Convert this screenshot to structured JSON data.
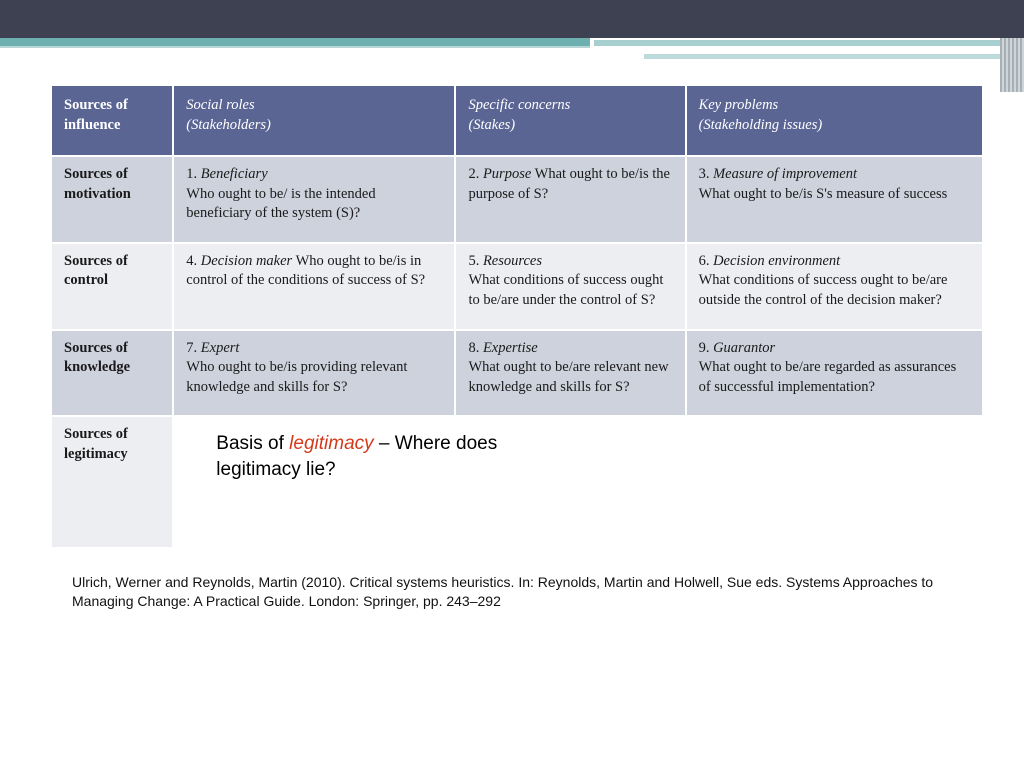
{
  "colors": {
    "top_bar": "#3e4151",
    "teal": "#6eafaf",
    "table_header_bg": "#5a6594",
    "table_header_fg": "#ffffff",
    "row_shade_a": "#ced2dd",
    "row_shade_b": "#edeef2",
    "callout_accent": "#d43a1a"
  },
  "typography": {
    "table_font": "Georgia, serif",
    "table_fontsize_pt": 11,
    "callout_font": "Arial, sans-serif",
    "callout_fontsize_pt": 14,
    "citation_fontsize_pt": 10
  },
  "table": {
    "type": "table",
    "header": {
      "corner": "Sources of influence",
      "cols": [
        {
          "line1": "Social roles",
          "line2": "(Stakeholders)"
        },
        {
          "line1": "Specific concerns",
          "line2": "(Stakes)"
        },
        {
          "line1": "Key problems",
          "line2": "(Stakeholding issues)"
        }
      ]
    },
    "rows": [
      {
        "label": "Sources of motivation",
        "cells": [
          {
            "num": "1.",
            "term": "Beneficiary",
            "text": "Who ought to be/ is the intended beneficiary of the system (S)?"
          },
          {
            "num": "2.",
            "term": "Purpose",
            "text": "What ought to be/is the purpose of S?"
          },
          {
            "num": "3.",
            "term": "Measure of improvement",
            "text": "What ought to be/is S's measure of success"
          }
        ]
      },
      {
        "label": "Sources of control",
        "cells": [
          {
            "num": "4.",
            "term": "Decision maker",
            "text": "Who ought to be/is in control of the conditions of success of S?"
          },
          {
            "num": "5.",
            "term": "Resources",
            "text": "What conditions of success ought to be/are under the control of S?"
          },
          {
            "num": "6.",
            "term": "Decision environment",
            "text": "What conditions of success ought to be/are outside the control of the decision maker?"
          }
        ]
      },
      {
        "label": "Sources of knowledge",
        "cells": [
          {
            "num": "7.",
            "term": "Expert",
            "text": "Who ought to be/is providing relevant knowledge and skills for S?"
          },
          {
            "num": "8.",
            "term": "Expertise",
            "text": "What ought to be/are relevant new knowledge and skills for S?"
          },
          {
            "num": "9.",
            "term": "Guarantor",
            "text": "What ought to be/are regarded as assurances of successful implementation?"
          }
        ]
      },
      {
        "label": "Sources of legitimacy",
        "callout": {
          "prefix": "Basis of ",
          "accent": "legitimacy",
          "suffix": " – Where does legitimacy lie?"
        }
      }
    ]
  },
  "citation": "Ulrich, Werner and Reynolds, Martin (2010). Critical systems heuristics. In: Reynolds, Martin and Holwell, Sue eds. Systems Approaches to Managing Change: A Practical Guide. London: Springer, pp. 243–292"
}
